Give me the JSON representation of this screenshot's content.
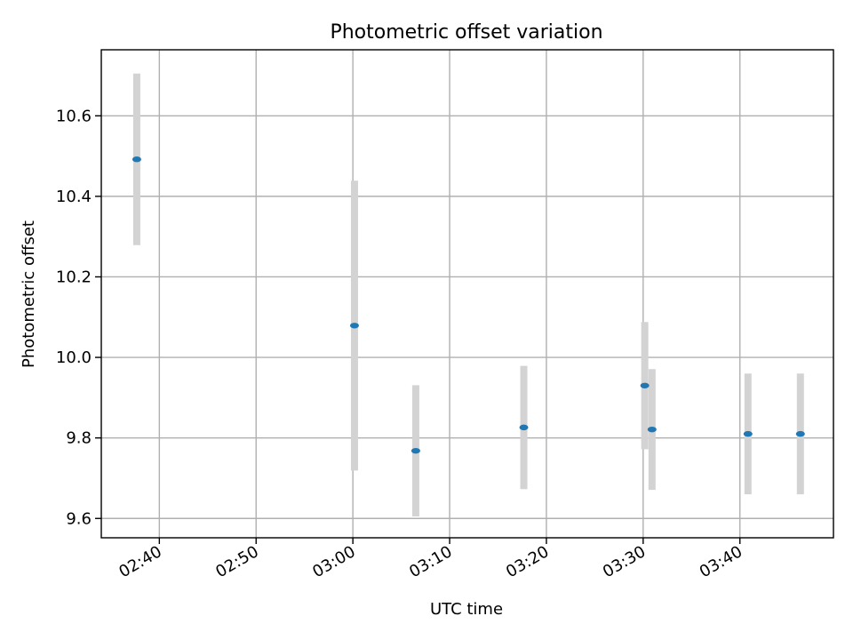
{
  "chart_data": {
    "type": "scatter",
    "title": "Photometric offset variation",
    "xlabel": "UTC time",
    "ylabel": "Photometric offset",
    "grid": true,
    "colors": {
      "point": "#1f77b4",
      "errorbar": "#d3d3d3"
    },
    "x_ticks": [
      "02:40",
      "02:50",
      "03:00",
      "03:10",
      "03:20",
      "03:30",
      "03:40"
    ],
    "y_ticks": [
      "9.6",
      "9.8",
      "10.0",
      "10.2",
      "10.4",
      "10.6"
    ],
    "xlim": [
      "02:34",
      "03:49:40"
    ],
    "ylim": [
      9.552,
      10.764
    ],
    "series": [
      {
        "points": [
          {
            "x": "02:37:40",
            "y": 10.492,
            "yerr": 0.213
          },
          {
            "x": "03:00:10",
            "y": 10.079,
            "yerr": 0.36
          },
          {
            "x": "03:06:30",
            "y": 9.768,
            "yerr": 0.163
          },
          {
            "x": "03:17:40",
            "y": 9.826,
            "yerr": 0.153
          },
          {
            "x": "03:30:10",
            "y": 9.93,
            "yerr": 0.158
          },
          {
            "x": "03:30:55",
            "y": 9.821,
            "yerr": 0.15
          },
          {
            "x": "03:40:50",
            "y": 9.81,
            "yerr": 0.15
          },
          {
            "x": "03:46:15",
            "y": 9.81,
            "yerr": 0.15
          }
        ]
      }
    ]
  }
}
